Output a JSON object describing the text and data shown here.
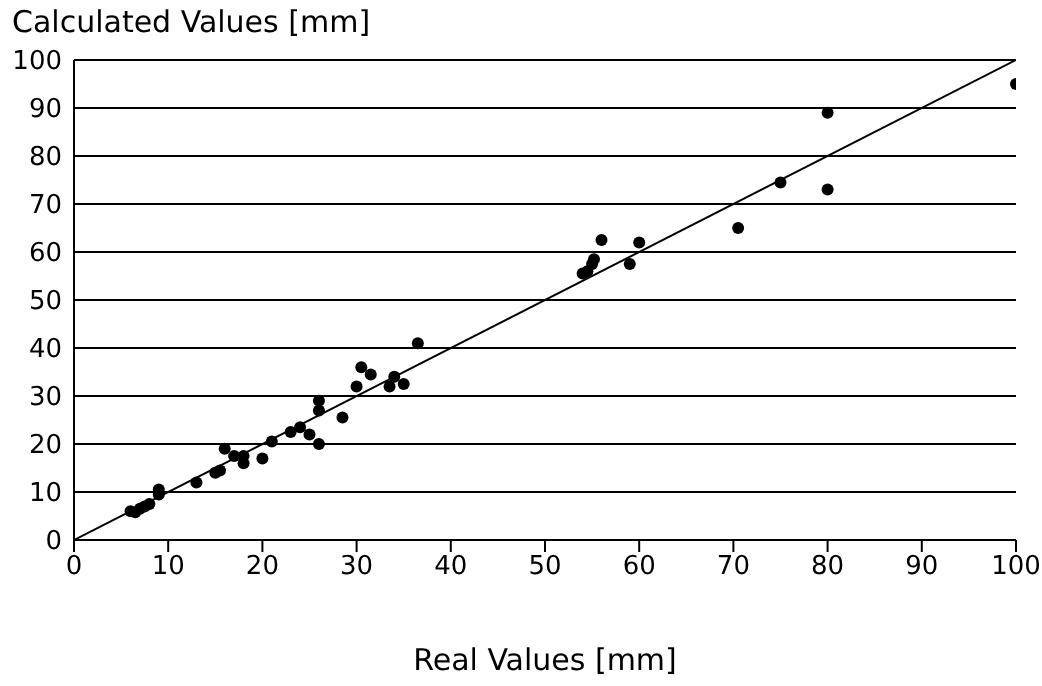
{
  "chart_data": {
    "type": "scatter",
    "xlabel": "Real Values [mm]",
    "ylabel": "Calculated Values [mm]",
    "xlim": [
      0,
      100
    ],
    "ylim": [
      0,
      100
    ],
    "xticks": [
      0,
      10,
      20,
      30,
      40,
      50,
      60,
      70,
      80,
      90,
      100
    ],
    "yticks": [
      0,
      10,
      20,
      30,
      40,
      50,
      60,
      70,
      80,
      90,
      100
    ],
    "grid": "y",
    "marker": "circle",
    "series": [
      {
        "color": "#000000",
        "x": [
          6,
          6.5,
          7,
          7.5,
          8,
          9,
          9,
          13,
          15,
          15.5,
          16,
          17,
          18,
          18,
          20,
          21,
          23,
          24,
          25,
          26,
          26,
          26,
          28.5,
          30,
          30.5,
          31.5,
          33.5,
          34,
          35,
          36.5,
          54,
          54.5,
          55,
          55.2,
          56,
          59,
          60,
          70.5,
          75,
          80,
          80,
          100
        ],
        "values": [
          6,
          5.8,
          6.5,
          7,
          7.5,
          9.5,
          10.5,
          12,
          14,
          14.5,
          19,
          17.5,
          16,
          17.5,
          17,
          20.5,
          22.5,
          23.5,
          22,
          20,
          27,
          29,
          25.5,
          32,
          36,
          34.5,
          32,
          34,
          32.5,
          41,
          55.5,
          56,
          57.5,
          58.5,
          62.5,
          57.5,
          62,
          65,
          74.5,
          89,
          73,
          95
        ]
      },
      {
        "type": "line",
        "color": "#000000",
        "marker": "none",
        "x": [
          0,
          100
        ],
        "values": [
          0,
          100
        ]
      }
    ]
  }
}
